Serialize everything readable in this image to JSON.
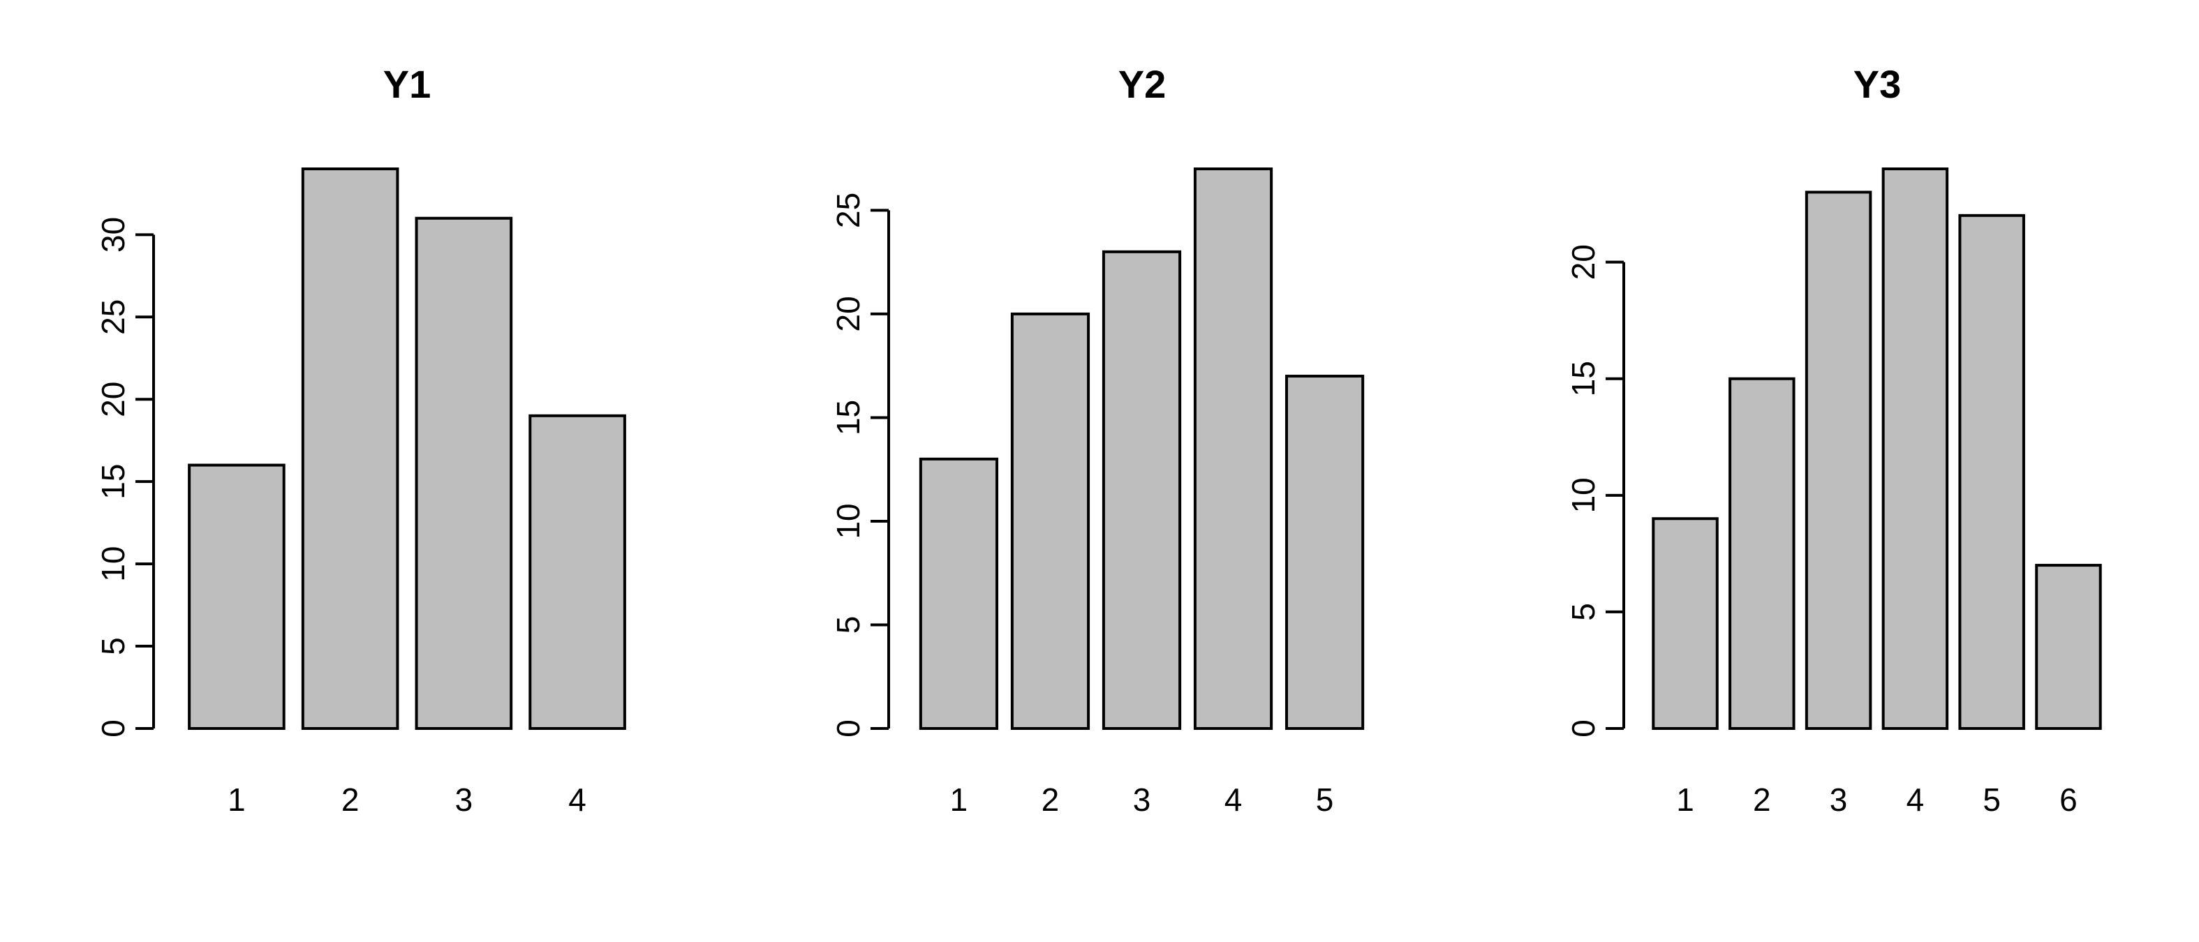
{
  "colors": {
    "bar_fill": "#bebebe",
    "bar_stroke": "#000000",
    "axis": "#000000",
    "background": "#ffffff"
  },
  "chart_data": [
    {
      "type": "bar",
      "title": "Y1",
      "categories": [
        "1",
        "2",
        "3",
        "4"
      ],
      "values": [
        16,
        34,
        31,
        19
      ],
      "xlabel": "",
      "ylabel": "",
      "ylim": [
        0,
        34
      ],
      "yticks": [
        0,
        5,
        10,
        15,
        20,
        25,
        30
      ]
    },
    {
      "type": "bar",
      "title": "Y2",
      "categories": [
        "1",
        "2",
        "3",
        "4",
        "5"
      ],
      "values": [
        13,
        20,
        23,
        27,
        17
      ],
      "xlabel": "",
      "ylabel": "",
      "ylim": [
        0,
        27
      ],
      "yticks": [
        0,
        5,
        10,
        15,
        20,
        25
      ]
    },
    {
      "type": "bar",
      "title": "Y3",
      "categories": [
        "1",
        "2",
        "3",
        "4",
        "5",
        "6"
      ],
      "values": [
        9,
        15,
        23,
        24,
        22,
        7
      ],
      "xlabel": "",
      "ylabel": "",
      "ylim": [
        0,
        24
      ],
      "yticks": [
        0,
        5,
        10,
        15,
        20
      ]
    }
  ]
}
